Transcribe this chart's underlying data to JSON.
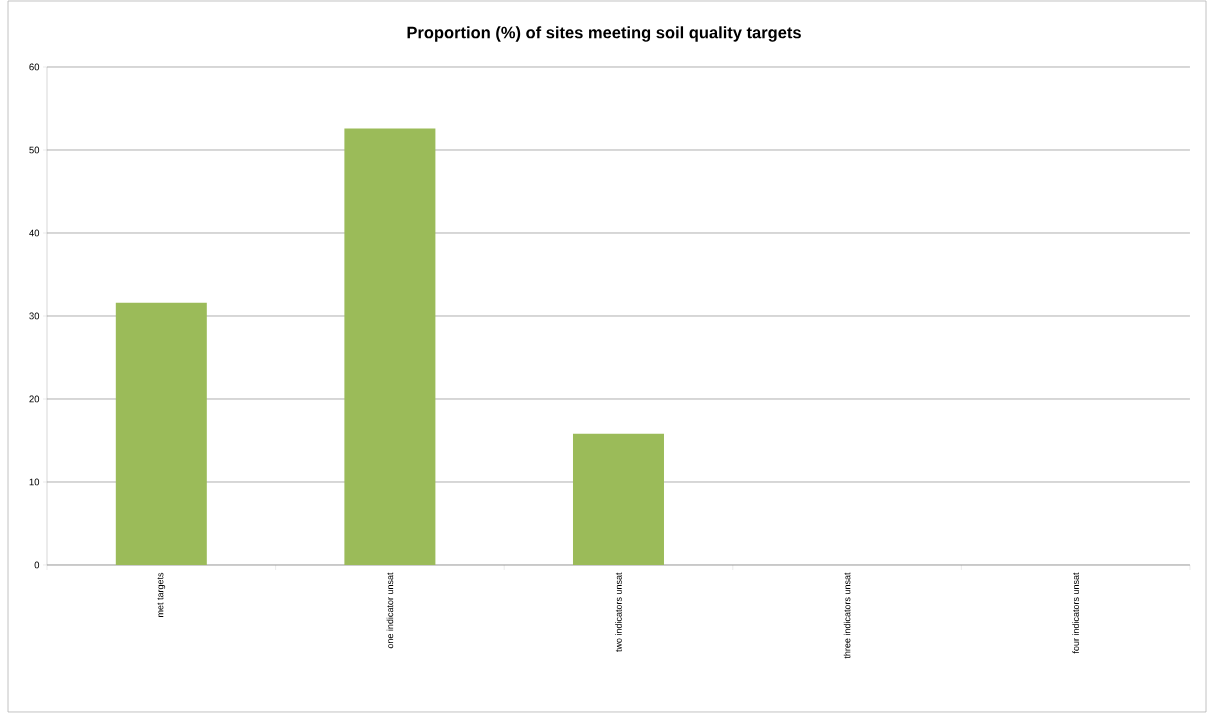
{
  "chart_data": {
    "type": "bar",
    "title": "Proportion (%) of sites meeting soil quality targets",
    "categories": [
      "met targets",
      "one indicator unsat",
      "two indicators unsat",
      "three indicators unsat",
      "four indicators unsat"
    ],
    "values": [
      31.6,
      52.6,
      15.8,
      0,
      0
    ],
    "color": "#9bbb59",
    "ylim": [
      0,
      60
    ],
    "yticks": [
      0,
      10,
      20,
      30,
      40,
      50,
      60
    ],
    "grid": "y"
  }
}
